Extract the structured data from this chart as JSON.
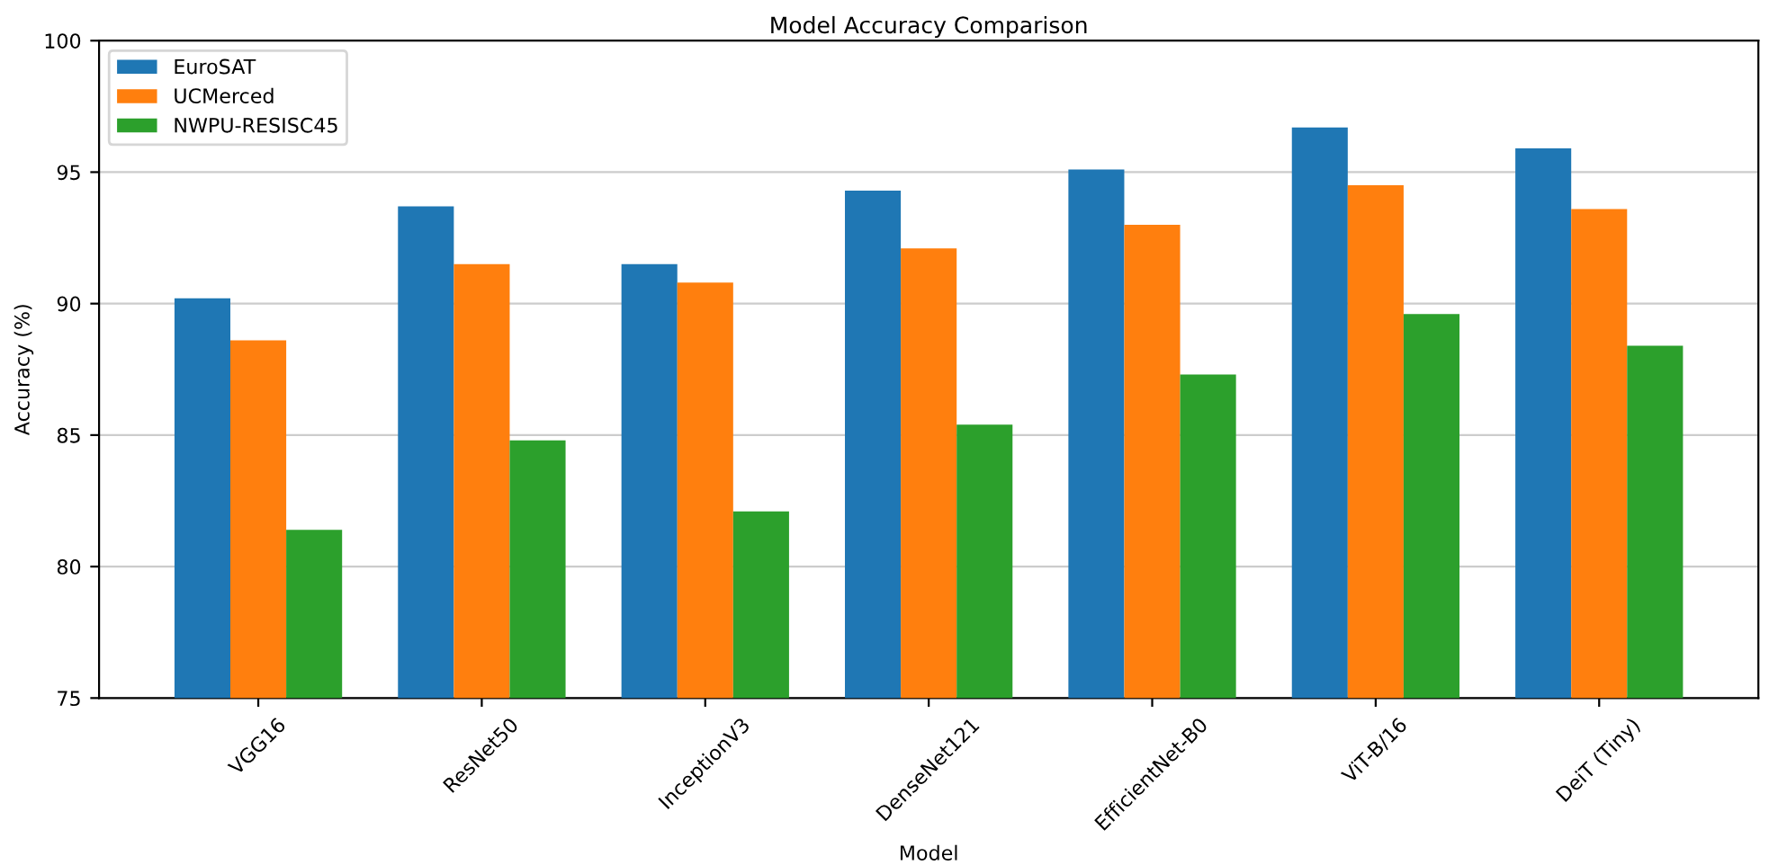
{
  "chart_data": {
    "type": "bar",
    "title": "Model Accuracy Comparison",
    "xlabel": "Model",
    "ylabel": "Accuracy (%)",
    "categories": [
      "VGG16",
      "ResNet50",
      "InceptionV3",
      "DenseNet121",
      "EfficientNet-B0",
      "ViT-B/16",
      "DeiT (Tiny)"
    ],
    "series": [
      {
        "name": "EuroSAT",
        "color": "#1f77b4",
        "values": [
          90.2,
          93.7,
          91.5,
          94.3,
          95.1,
          96.7,
          95.9
        ]
      },
      {
        "name": "UCMerced",
        "color": "#ff7f0e",
        "values": [
          88.6,
          91.5,
          90.8,
          92.1,
          93.0,
          94.5,
          93.6
        ]
      },
      {
        "name": "NWPU-RESISC45",
        "color": "#2ca02c",
        "values": [
          81.4,
          84.8,
          82.1,
          85.4,
          87.3,
          89.6,
          88.4
        ]
      }
    ],
    "ylim": [
      75,
      100
    ],
    "yticks": [
      75,
      80,
      85,
      90,
      95,
      100
    ],
    "grid": "y",
    "legend": "top left"
  }
}
